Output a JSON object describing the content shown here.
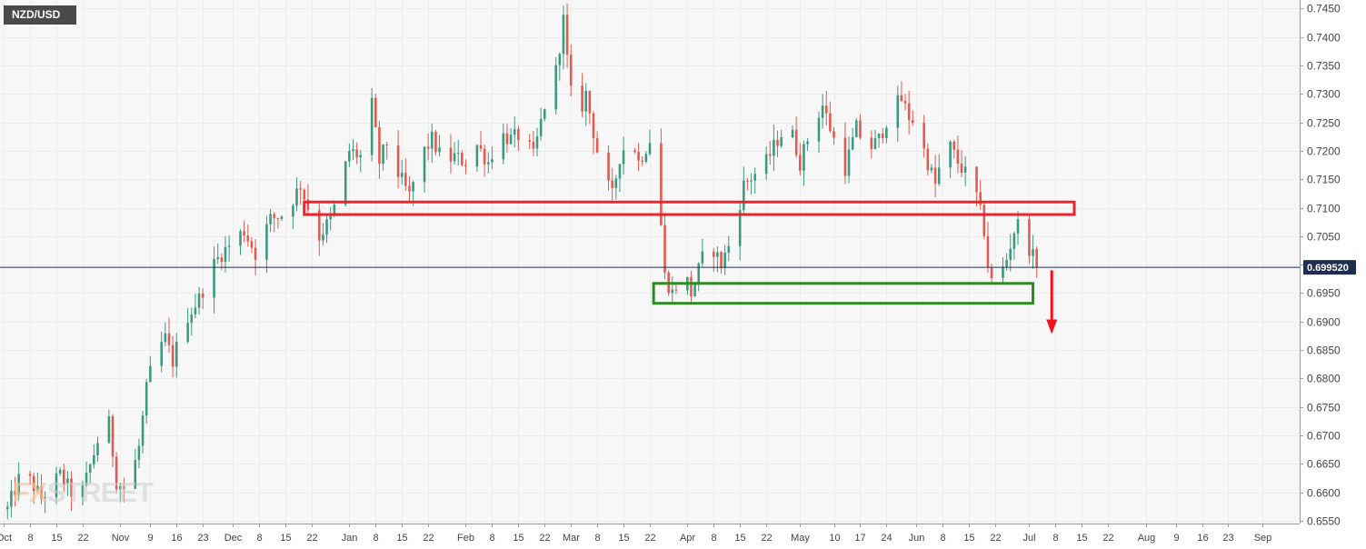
{
  "symbol": "NZD/USD",
  "watermark": {
    "prefix": "FX",
    "main": "STREET"
  },
  "current_price": {
    "label": "0.699520",
    "value": 0.69952,
    "color": "#1f2e4f"
  },
  "colors": {
    "bull": "#3a9a7e",
    "bear": "#e05a4f",
    "grid": "#ececec",
    "background": "#f7f7f8",
    "resistance_box": "#f0232a",
    "support_box": "#2e8b22",
    "arrow": "#f0131c"
  },
  "chart_data": {
    "type": "candlestick",
    "title": "NZD/USD",
    "ylim": [
      0.6545,
      0.7465
    ],
    "y_ticks": [
      0.655,
      0.66,
      0.665,
      0.67,
      0.675,
      0.68,
      0.685,
      0.69,
      0.695,
      0.7,
      0.705,
      0.71,
      0.715,
      0.72,
      0.725,
      0.73,
      0.735,
      0.74,
      0.745
    ],
    "y_tick_labels": [
      "0.6550",
      "0.6600",
      "0.6650",
      "0.6700",
      "0.6750",
      "0.6800",
      "0.6850",
      "0.6900",
      "0.6950",
      "0.7000",
      "0.7050",
      "0.7100",
      "0.7150",
      "0.7200",
      "0.7250",
      "0.7300",
      "0.7350",
      "0.7400",
      "0.7450"
    ],
    "x_ticks": [
      {
        "label": "Oct",
        "day": 0
      },
      {
        "label": "8",
        "day": 7
      },
      {
        "label": "15",
        "day": 14
      },
      {
        "label": "22",
        "day": 21
      },
      {
        "label": "Nov",
        "day": 31
      },
      {
        "label": "9",
        "day": 39
      },
      {
        "label": "16",
        "day": 46
      },
      {
        "label": "23",
        "day": 53
      },
      {
        "label": "Dec",
        "day": 61
      },
      {
        "label": "8",
        "day": 68
      },
      {
        "label": "15",
        "day": 75
      },
      {
        "label": "22",
        "day": 82
      },
      {
        "label": "Jan",
        "day": 92
      },
      {
        "label": "8",
        "day": 99
      },
      {
        "label": "15",
        "day": 106
      },
      {
        "label": "22",
        "day": 113
      },
      {
        "label": "Feb",
        "day": 123
      },
      {
        "label": "8",
        "day": 130
      },
      {
        "label": "15",
        "day": 137
      },
      {
        "label": "22",
        "day": 144
      },
      {
        "label": "Mar",
        "day": 151
      },
      {
        "label": "8",
        "day": 158
      },
      {
        "label": "15",
        "day": 165
      },
      {
        "label": "22",
        "day": 172
      },
      {
        "label": "Apr",
        "day": 182
      },
      {
        "label": "8",
        "day": 189
      },
      {
        "label": "15",
        "day": 196
      },
      {
        "label": "22",
        "day": 203
      },
      {
        "label": "May",
        "day": 212
      },
      {
        "label": "10",
        "day": 221
      },
      {
        "label": "17",
        "day": 228
      },
      {
        "label": "24",
        "day": 235
      },
      {
        "label": "Jun",
        "day": 243
      },
      {
        "label": "8",
        "day": 250
      },
      {
        "label": "15",
        "day": 257
      },
      {
        "label": "22",
        "day": 264
      },
      {
        "label": "Jul",
        "day": 273
      },
      {
        "label": "8",
        "day": 280
      },
      {
        "label": "15",
        "day": 287
      },
      {
        "label": "22",
        "day": 294
      },
      {
        "label": "Aug",
        "day": 304
      },
      {
        "label": "9",
        "day": 312
      },
      {
        "label": "16",
        "day": 319
      },
      {
        "label": "23",
        "day": 326
      },
      {
        "label": "Sep",
        "day": 335
      }
    ],
    "x_range_days": [
      -1,
      345
    ],
    "close_path": [
      [
        1,
        0.657
      ],
      [
        5,
        0.664
      ],
      [
        10,
        0.659
      ],
      [
        15,
        0.663
      ],
      [
        20,
        0.658
      ],
      [
        25,
        0.669
      ],
      [
        28,
        0.672
      ],
      [
        30,
        0.662
      ],
      [
        33,
        0.66
      ],
      [
        36,
        0.668
      ],
      [
        38,
        0.678
      ],
      [
        40,
        0.684
      ],
      [
        43,
        0.687
      ],
      [
        45,
        0.683
      ],
      [
        48,
        0.69
      ],
      [
        52,
        0.694
      ],
      [
        55,
        0.699
      ],
      [
        58,
        0.702
      ],
      [
        61,
        0.704
      ],
      [
        64,
        0.706
      ],
      [
        67,
        0.702
      ],
      [
        71,
        0.708
      ],
      [
        75,
        0.709
      ],
      [
        79,
        0.714
      ],
      [
        81,
        0.71
      ],
      [
        84,
        0.705
      ],
      [
        87,
        0.708
      ],
      [
        89,
        0.712
      ],
      [
        92,
        0.72
      ],
      [
        95,
        0.719
      ],
      [
        98,
        0.728
      ],
      [
        100,
        0.718
      ],
      [
        103,
        0.723
      ],
      [
        105,
        0.716
      ],
      [
        108,
        0.712
      ],
      [
        111,
        0.719
      ],
      [
        114,
        0.722
      ],
      [
        117,
        0.718
      ],
      [
        120,
        0.719
      ],
      [
        123,
        0.718
      ],
      [
        126,
        0.721
      ],
      [
        129,
        0.718
      ],
      [
        132,
        0.723
      ],
      [
        135,
        0.722
      ],
      [
        138,
        0.723
      ],
      [
        141,
        0.719
      ],
      [
        144,
        0.728
      ],
      [
        147,
        0.734
      ],
      [
        149,
        0.743
      ],
      [
        150,
        0.736
      ],
      [
        152,
        0.724
      ],
      [
        155,
        0.73
      ],
      [
        158,
        0.72
      ],
      [
        160,
        0.715
      ],
      [
        162,
        0.712
      ],
      [
        164,
        0.719
      ],
      [
        167,
        0.723
      ],
      [
        169,
        0.718
      ],
      [
        172,
        0.722
      ],
      [
        174,
        0.715
      ],
      [
        175,
        0.707
      ],
      [
        176,
        0.698
      ],
      [
        178,
        0.695
      ],
      [
        181,
        0.699
      ],
      [
        183,
        0.695
      ],
      [
        186,
        0.701
      ],
      [
        188,
        0.704
      ],
      [
        191,
        0.7
      ],
      [
        194,
        0.705
      ],
      [
        197,
        0.714
      ],
      [
        200,
        0.716
      ],
      [
        203,
        0.718
      ],
      [
        206,
        0.722
      ],
      [
        209,
        0.725
      ],
      [
        212,
        0.718
      ],
      [
        215,
        0.724
      ],
      [
        218,
        0.728
      ],
      [
        221,
        0.722
      ],
      [
        224,
        0.717
      ],
      [
        227,
        0.724
      ],
      [
        230,
        0.72
      ],
      [
        233,
        0.722
      ],
      [
        236,
        0.727
      ],
      [
        239,
        0.729
      ],
      [
        241,
        0.726
      ],
      [
        243,
        0.725
      ],
      [
        245,
        0.72
      ],
      [
        248,
        0.714
      ],
      [
        251,
        0.722
      ],
      [
        254,
        0.718
      ],
      [
        257,
        0.715
      ],
      [
        259,
        0.712
      ],
      [
        261,
        0.706
      ],
      [
        262,
        0.7
      ],
      [
        264,
        0.694
      ],
      [
        265,
        0.6975
      ],
      [
        267,
        0.701
      ],
      [
        269,
        0.706
      ],
      [
        271,
        0.708
      ],
      [
        273,
        0.703
      ],
      [
        275,
        0.6995
      ]
    ],
    "annotations": {
      "resistance_zone": {
        "x_start_day": 80,
        "x_end_day": 285,
        "y_low": 0.7088,
        "y_high": 0.711
      },
      "support_zone": {
        "x_start_day": 173,
        "x_end_day": 274,
        "y_low": 0.6932,
        "y_high": 0.6967
      },
      "down_arrow": {
        "day": 279,
        "y_start": 0.699,
        "y_end": 0.6878
      },
      "current_price_line": 0.69952
    },
    "grid": true
  }
}
